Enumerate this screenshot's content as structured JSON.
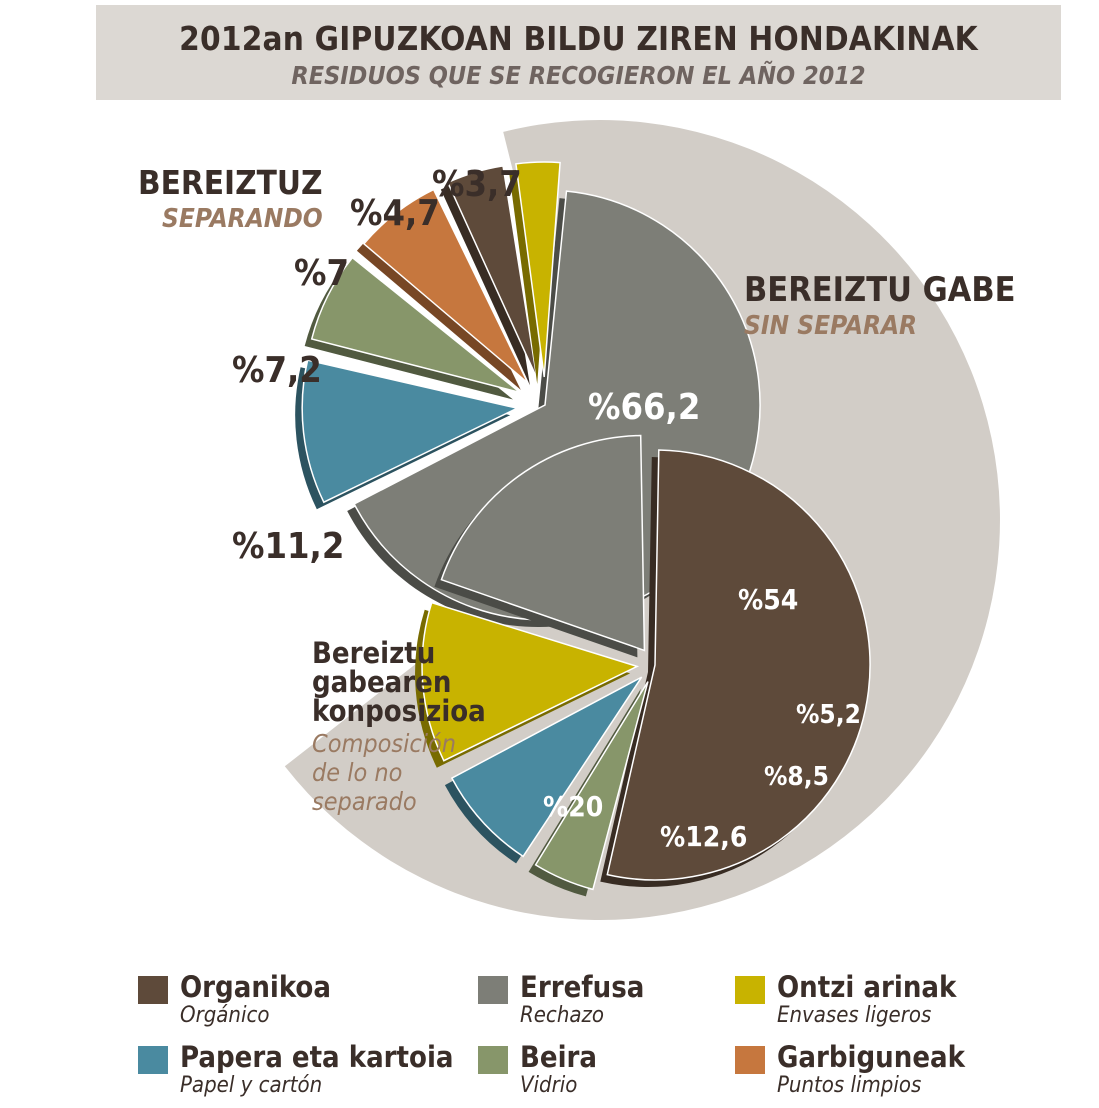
{
  "title": {
    "main": "2012an GIPUZKOAN BILDU ZIREN HONDAKINAK",
    "sub": "RESIDUOS QUE SE RECOGIERON EL AÑO 2012"
  },
  "labels": {
    "separated_title": "BEREIZTUZ",
    "separated_sub": "SEPARANDO",
    "unseparated_title": "BEREIZTU GABE",
    "unseparated_sub": "SIN SEPARAR",
    "composition_title_1": "Bereiztu",
    "composition_title_2": "gabearen",
    "composition_title_3": "konposizioa",
    "composition_sub_1": "Composición",
    "composition_sub_2": "de lo no",
    "composition_sub_3": "separado"
  },
  "colors": {
    "organic": "#5e4a3a",
    "reject": "#7d7e77",
    "light_packaging": "#c8b300",
    "paper": "#4a8aa0",
    "glass": "#87966a",
    "clean_points": "#c6773e",
    "background_band": "#d2cdc7"
  },
  "chart_data": [
    {
      "type": "pie",
      "title": "RESIDUOS QUE SE RECOGIERON EL AÑO 2012",
      "slices": [
        {
          "key": "reject",
          "label": "Errefusa",
          "value": 66.2,
          "text": "%66,2"
        },
        {
          "key": "paper",
          "label": "Papera eta kartoia",
          "value": 11.2,
          "text": "%11,2"
        },
        {
          "key": "glass",
          "label": "Beira",
          "value": 7.2,
          "text": "%7,2"
        },
        {
          "key": "clean_points",
          "label": "Garbiguneak",
          "value": 7.0,
          "text": "%7"
        },
        {
          "key": "organic",
          "label": "Organikoa",
          "value": 4.7,
          "text": "%4,7"
        },
        {
          "key": "light_packaging",
          "label": "Ontzi arinak",
          "value": 3.7,
          "text": "%3,7"
        }
      ]
    },
    {
      "type": "pie",
      "title": "Bereiztu gabearen konposizioa",
      "slices": [
        {
          "key": "organic",
          "label": "Organikoa",
          "value": 54,
          "text": "%54"
        },
        {
          "key": "glass",
          "label": "Beira",
          "value": 5.2,
          "text": "%5,2"
        },
        {
          "key": "paper",
          "label": "Papera eta kartoia",
          "value": 8.5,
          "text": "%8,5"
        },
        {
          "key": "light_packaging",
          "label": "Ontzi arinak",
          "value": 12.6,
          "text": "%12,6"
        },
        {
          "key": "reject",
          "label": "Errefusa",
          "value": 20,
          "text": "%20"
        }
      ]
    }
  ],
  "legend": [
    {
      "key": "organic",
      "name": "Organikoa",
      "sub": "Orgánico"
    },
    {
      "key": "reject",
      "name": "Errefusa",
      "sub": "Rechazo"
    },
    {
      "key": "light_packaging",
      "name": "Ontzi arinak",
      "sub": "Envases ligeros"
    },
    {
      "key": "paper",
      "name": "Papera eta kartoia",
      "sub": "Papel y cartón"
    },
    {
      "key": "glass",
      "name": "Beira",
      "sub": "Vidrio"
    },
    {
      "key": "clean_points",
      "name": "Garbiguneak",
      "sub": "Puntos limpios"
    }
  ]
}
